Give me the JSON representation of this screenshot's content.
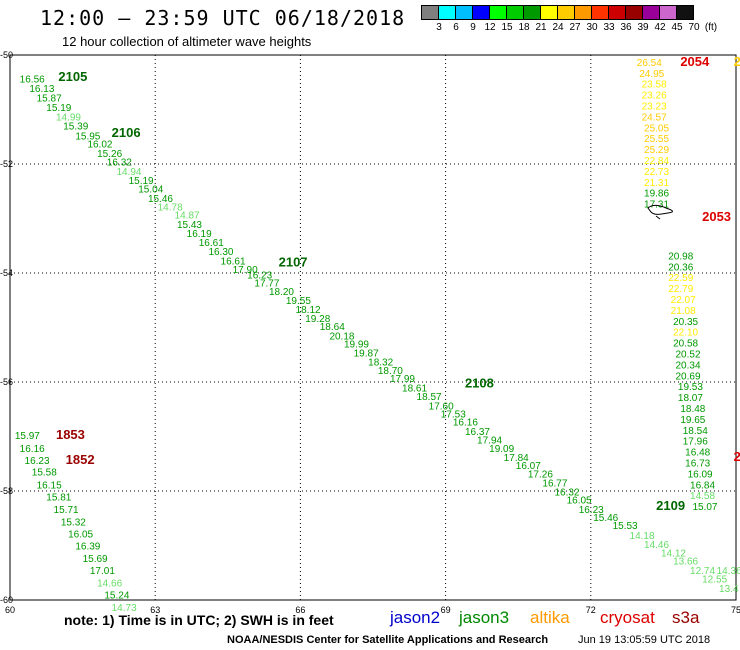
{
  "header": {
    "title": "12:00 — 23:59 UTC 06/18/2018",
    "subtitle": "12 hour collection of altimeter wave heights"
  },
  "color_scale": {
    "labels": [
      "3",
      "6",
      "9",
      "12",
      "15",
      "18",
      "21",
      "24",
      "27",
      "30",
      "33",
      "36",
      "39",
      "42",
      "45",
      "70",
      "(ft)"
    ],
    "colors": [
      "#7f7f7f",
      "#00ffff",
      "#00bfff",
      "#0000ff",
      "#00ff00",
      "#00cc00",
      "#009900",
      "#ffff00",
      "#ffcc00",
      "#ff9900",
      "#ff3300",
      "#cc0000",
      "#990000",
      "#990099",
      "#cc66cc",
      "#111111"
    ]
  },
  "axes": {
    "x_ticks": [
      "60",
      "63",
      "66",
      "69",
      "72",
      "75"
    ],
    "y_ticks": [
      "-50",
      "-52",
      "-54",
      "-56",
      "-58",
      "-60"
    ]
  },
  "footer": {
    "note": "note:  1) Time is in UTC;  2) SWH is in feet",
    "satellites": [
      {
        "name": "jason2",
        "color": "#0000cc"
      },
      {
        "name": "jason3",
        "color": "#008800"
      },
      {
        "name": "altika",
        "color": "#ff9900"
      },
      {
        "name": "cryosat",
        "color": "#dd0000"
      },
      {
        "name": "s3a",
        "color": "#990000"
      }
    ],
    "credit": "NOAA/NESDIS Center for Satellite Applications and Research",
    "timestamp": "Jun 19 13:05:59 UTC 2018"
  },
  "tracks": [
    {
      "satellite": "jason3",
      "labels": [
        {
          "text": "2105",
          "lon": 61.0,
          "lat": -50.48,
          "color": "#006600"
        },
        {
          "text": "2106",
          "lon": 62.1,
          "lat": -51.5,
          "color": "#006600"
        },
        {
          "text": "2107",
          "lon": 65.55,
          "lat": -53.88,
          "color": "#006600"
        },
        {
          "text": "2108",
          "lon": 69.4,
          "lat": -56.1,
          "color": "#006600"
        },
        {
          "text": "2109",
          "lon": 73.35,
          "lat": -58.35,
          "color": "#006600"
        }
      ],
      "values": [
        {
          "v": "16.56",
          "lon": 60.2,
          "lat": -50.5,
          "c": "#009900"
        },
        {
          "v": "16.13",
          "lon": 60.4,
          "lat": -50.68,
          "c": "#009900"
        },
        {
          "v": "15.87",
          "lon": 60.55,
          "lat": -50.85,
          "c": "#009900"
        },
        {
          "v": "15.19",
          "lon": 60.75,
          "lat": -51.03,
          "c": "#009900"
        },
        {
          "v": "14.99",
          "lon": 60.95,
          "lat": -51.2,
          "c": "#66dd66"
        },
        {
          "v": "15.39",
          "lon": 61.1,
          "lat": -51.37,
          "c": "#009900"
        },
        {
          "v": "15.95",
          "lon": 61.35,
          "lat": -51.55,
          "c": "#009900"
        },
        {
          "v": "16.02",
          "lon": 61.6,
          "lat": -51.7,
          "c": "#009900"
        },
        {
          "v": "15.26",
          "lon": 61.8,
          "lat": -51.87,
          "c": "#009900"
        },
        {
          "v": "16.32",
          "lon": 62.0,
          "lat": -52.03,
          "c": "#009900"
        },
        {
          "v": "14.94",
          "lon": 62.2,
          "lat": -52.2,
          "c": "#66dd66"
        },
        {
          "v": "15.19",
          "lon": 62.45,
          "lat": -52.37,
          "c": "#009900"
        },
        {
          "v": "15.04",
          "lon": 62.65,
          "lat": -52.52,
          "c": "#009900"
        },
        {
          "v": "15.46",
          "lon": 62.85,
          "lat": -52.7,
          "c": "#009900"
        },
        {
          "v": "14.78",
          "lon": 63.05,
          "lat": -52.85,
          "c": "#66dd66"
        },
        {
          "v": "14.87",
          "lon": 63.4,
          "lat": -53.0,
          "c": "#66dd66"
        },
        {
          "v": "15.43",
          "lon": 63.45,
          "lat": -53.17,
          "c": "#009900"
        },
        {
          "v": "16.19",
          "lon": 63.65,
          "lat": -53.34,
          "c": "#009900"
        },
        {
          "v": "16.61",
          "lon": 63.9,
          "lat": -53.5,
          "c": "#009900"
        },
        {
          "v": "16.30",
          "lon": 64.1,
          "lat": -53.67,
          "c": "#009900"
        },
        {
          "v": "16.61",
          "lon": 64.35,
          "lat": -53.84,
          "c": "#009900"
        },
        {
          "v": "17.90",
          "lon": 64.6,
          "lat": -54.0,
          "c": "#009900"
        },
        {
          "v": "16.23",
          "lon": 64.9,
          "lat": -54.1,
          "c": "#009900"
        },
        {
          "v": "17.77",
          "lon": 65.05,
          "lat": -54.25,
          "c": "#009900"
        },
        {
          "v": "18.20",
          "lon": 65.35,
          "lat": -54.4,
          "c": "#009900"
        },
        {
          "v": "19.55",
          "lon": 65.7,
          "lat": -54.57,
          "c": "#009900"
        },
        {
          "v": "18.12",
          "lon": 65.9,
          "lat": -54.73,
          "c": "#009900"
        },
        {
          "v": "19.28",
          "lon": 66.1,
          "lat": -54.9,
          "c": "#009900"
        },
        {
          "v": "18.64",
          "lon": 66.4,
          "lat": -55.05,
          "c": "#009900"
        },
        {
          "v": "20.18",
          "lon": 66.6,
          "lat": -55.22,
          "c": "#009900"
        },
        {
          "v": "19.99",
          "lon": 66.9,
          "lat": -55.37,
          "c": "#009900"
        },
        {
          "v": "19.87",
          "lon": 67.1,
          "lat": -55.53,
          "c": "#009900"
        },
        {
          "v": "18.32",
          "lon": 67.4,
          "lat": -55.7,
          "c": "#009900"
        },
        {
          "v": "18.70",
          "lon": 67.6,
          "lat": -55.85,
          "c": "#009900"
        },
        {
          "v": "17.99",
          "lon": 67.85,
          "lat": -56.0,
          "c": "#009900"
        },
        {
          "v": "18.61",
          "lon": 68.1,
          "lat": -56.17,
          "c": "#009900"
        },
        {
          "v": "18.57",
          "lon": 68.4,
          "lat": -56.33,
          "c": "#009900"
        },
        {
          "v": "17.60",
          "lon": 68.65,
          "lat": -56.5,
          "c": "#009900"
        },
        {
          "v": "17.53",
          "lon": 68.9,
          "lat": -56.65,
          "c": "#009900"
        },
        {
          "v": "16.16",
          "lon": 69.15,
          "lat": -56.8,
          "c": "#009900"
        },
        {
          "v": "16.37",
          "lon": 69.4,
          "lat": -56.97,
          "c": "#009900"
        },
        {
          "v": "17.94",
          "lon": 69.65,
          "lat": -57.13,
          "c": "#009900"
        },
        {
          "v": "19.09",
          "lon": 69.9,
          "lat": -57.28,
          "c": "#009900"
        },
        {
          "v": "17.84",
          "lon": 70.2,
          "lat": -57.45,
          "c": "#009900"
        },
        {
          "v": "16.07",
          "lon": 70.45,
          "lat": -57.6,
          "c": "#009900"
        },
        {
          "v": "17.26",
          "lon": 70.7,
          "lat": -57.75,
          "c": "#009900"
        },
        {
          "v": "16.77",
          "lon": 71.0,
          "lat": -57.92,
          "c": "#009900"
        },
        {
          "v": "16.32",
          "lon": 71.25,
          "lat": -58.08,
          "c": "#009900"
        },
        {
          "v": "16.05",
          "lon": 71.5,
          "lat": -58.23,
          "c": "#009900"
        },
        {
          "v": "16.23",
          "lon": 71.75,
          "lat": -58.4,
          "c": "#009900"
        },
        {
          "v": "15.46",
          "lon": 72.05,
          "lat": -58.55,
          "c": "#009900"
        },
        {
          "v": "15.53",
          "lon": 72.45,
          "lat": -58.7,
          "c": "#009900"
        },
        {
          "v": "14.18",
          "lon": 72.8,
          "lat": -58.88,
          "c": "#66dd66"
        },
        {
          "v": "14.46",
          "lon": 73.1,
          "lat": -59.05,
          "c": "#66dd66"
        },
        {
          "v": "14.12",
          "lon": 73.45,
          "lat": -59.2,
          "c": "#66dd66"
        },
        {
          "v": "13.66",
          "lon": 73.7,
          "lat": -59.35,
          "c": "#66dd66"
        },
        {
          "v": "12.74",
          "lon": 74.05,
          "lat": -59.52,
          "c": "#66dd66"
        },
        {
          "v": "14.36",
          "lon": 74.6,
          "lat": -59.52,
          "c": "#66dd66"
        },
        {
          "v": "12.55",
          "lon": 74.3,
          "lat": -59.68,
          "c": "#66dd66"
        },
        {
          "v": "13.4",
          "lon": 74.65,
          "lat": -59.85,
          "c": "#66dd66"
        }
      ]
    },
    {
      "satellite": "cryosat",
      "labels": [
        {
          "text": "2054",
          "lon": 73.85,
          "lat": -50.2,
          "color": "#dd0000"
        },
        {
          "text": "2053",
          "lon": 74.3,
          "lat": -53.05,
          "color": "#dd0000"
        }
      ],
      "values": [
        {
          "v": "26.54",
          "lon": 72.95,
          "lat": -50.2,
          "c": "#ffcc00"
        },
        {
          "v": "24.95",
          "lon": 73.0,
          "lat": -50.4,
          "c": "#ffcc00"
        },
        {
          "v": "23.58",
          "lon": 73.05,
          "lat": -50.6,
          "c": "#ffee00"
        },
        {
          "v": "23.26",
          "lon": 73.05,
          "lat": -50.8,
          "c": "#ffee00"
        },
        {
          "v": "23.23",
          "lon": 73.05,
          "lat": -51.0,
          "c": "#ffee00"
        },
        {
          "v": "24.57",
          "lon": 73.05,
          "lat": -51.2,
          "c": "#ffcc00"
        },
        {
          "v": "25.05",
          "lon": 73.1,
          "lat": -51.4,
          "c": "#ffcc00"
        },
        {
          "v": "25.55",
          "lon": 73.1,
          "lat": -51.6,
          "c": "#ffcc00"
        },
        {
          "v": "25.29",
          "lon": 73.1,
          "lat": -51.8,
          "c": "#ffcc00"
        },
        {
          "v": "22.84",
          "lon": 73.1,
          "lat": -52.0,
          "c": "#ffee00"
        },
        {
          "v": "22.73",
          "lon": 73.1,
          "lat": -52.2,
          "c": "#ffee00"
        },
        {
          "v": "21.31",
          "lon": 73.1,
          "lat": -52.4,
          "c": "#ffee00"
        },
        {
          "v": "19.86",
          "lon": 73.1,
          "lat": -52.6,
          "c": "#009900"
        },
        {
          "v": "17.31",
          "lon": 73.1,
          "lat": -52.8,
          "c": "#009900"
        },
        {
          "v": "20.98",
          "lon": 73.6,
          "lat": -53.75,
          "c": "#009900"
        },
        {
          "v": "20.36",
          "lon": 73.6,
          "lat": -53.95,
          "c": "#009900"
        },
        {
          "v": "22.59",
          "lon": 73.6,
          "lat": -54.15,
          "c": "#ffee00"
        },
        {
          "v": "22.79",
          "lon": 73.6,
          "lat": -54.35,
          "c": "#ffee00"
        },
        {
          "v": "22.07",
          "lon": 73.65,
          "lat": -54.55,
          "c": "#ffee00"
        },
        {
          "v": "21.08",
          "lon": 73.65,
          "lat": -54.75,
          "c": "#ffee00"
        },
        {
          "v": "20.35",
          "lon": 73.7,
          "lat": -54.95,
          "c": "#009900"
        },
        {
          "v": "22.10",
          "lon": 73.7,
          "lat": -55.15,
          "c": "#ffee00"
        },
        {
          "v": "20.58",
          "lon": 73.7,
          "lat": -55.35,
          "c": "#009900"
        },
        {
          "v": "20.52",
          "lon": 73.75,
          "lat": -55.55,
          "c": "#009900"
        },
        {
          "v": "20.34",
          "lon": 73.75,
          "lat": -55.75,
          "c": "#009900"
        },
        {
          "v": "20.69",
          "lon": 73.75,
          "lat": -55.95,
          "c": "#009900"
        },
        {
          "v": "19.53",
          "lon": 73.8,
          "lat": -56.15,
          "c": "#009900"
        },
        {
          "v": "18.07",
          "lon": 73.8,
          "lat": -56.35,
          "c": "#009900"
        },
        {
          "v": "18.48",
          "lon": 73.85,
          "lat": -56.55,
          "c": "#009900"
        },
        {
          "v": "19.65",
          "lon": 73.85,
          "lat": -56.75,
          "c": "#009900"
        },
        {
          "v": "18.54",
          "lon": 73.9,
          "lat": -56.95,
          "c": "#009900"
        },
        {
          "v": "17.96",
          "lon": 73.9,
          "lat": -57.15,
          "c": "#009900"
        },
        {
          "v": "16.48",
          "lon": 73.95,
          "lat": -57.35,
          "c": "#009900"
        },
        {
          "v": "16.73",
          "lon": 73.95,
          "lat": -57.55,
          "c": "#009900"
        },
        {
          "v": "16.09",
          "lon": 74.0,
          "lat": -57.75,
          "c": "#009900"
        },
        {
          "v": "16.84",
          "lon": 74.05,
          "lat": -57.95,
          "c": "#009900"
        },
        {
          "v": "14.58",
          "lon": 74.05,
          "lat": -58.15,
          "c": "#66dd66"
        },
        {
          "v": "15.07",
          "lon": 74.1,
          "lat": -58.35,
          "c": "#009900"
        }
      ]
    },
    {
      "satellite": "s3a",
      "labels": [
        {
          "text": "1853",
          "lon": 60.95,
          "lat": -57.05,
          "color": "#990000"
        },
        {
          "text": "1852",
          "lon": 61.15,
          "lat": -57.5,
          "color": "#990000"
        }
      ],
      "values": [
        {
          "v": "15.97",
          "lon": 60.1,
          "lat": -57.05,
          "c": "#009900"
        },
        {
          "v": "16.16",
          "lon": 60.2,
          "lat": -57.28,
          "c": "#009900"
        },
        {
          "v": "16.23",
          "lon": 60.3,
          "lat": -57.5,
          "c": "#009900"
        },
        {
          "v": "15.58",
          "lon": 60.45,
          "lat": -57.72,
          "c": "#009900"
        },
        {
          "v": "16.15",
          "lon": 60.55,
          "lat": -57.95,
          "c": "#009900"
        },
        {
          "v": "15.81",
          "lon": 60.75,
          "lat": -58.17,
          "c": "#009900"
        },
        {
          "v": "15.71",
          "lon": 60.9,
          "lat": -58.4,
          "c": "#009900"
        },
        {
          "v": "15.32",
          "lon": 61.05,
          "lat": -58.63,
          "c": "#009900"
        },
        {
          "v": "16.05",
          "lon": 61.2,
          "lat": -58.85,
          "c": "#009900"
        },
        {
          "v": "16.39",
          "lon": 61.35,
          "lat": -59.07,
          "c": "#009900"
        },
        {
          "v": "15.69",
          "lon": 61.5,
          "lat": -59.3,
          "c": "#009900"
        },
        {
          "v": "17.01",
          "lon": 61.65,
          "lat": -59.52,
          "c": "#009900"
        },
        {
          "v": "14.66",
          "lon": 61.8,
          "lat": -59.75,
          "c": "#66dd66"
        },
        {
          "v": "15.24",
          "lon": 61.95,
          "lat": -59.97,
          "c": "#009900"
        },
        {
          "v": "14.73",
          "lon": 62.1,
          "lat": -60.2,
          "c": "#66dd66"
        }
      ]
    }
  ],
  "edge_marks": [
    {
      "text": "2",
      "lon": 74.95,
      "lat": -50.2,
      "color": "#ffcc00"
    },
    {
      "text": "2",
      "lon": 74.95,
      "lat": -57.45,
      "color": "#dd0000"
    }
  ]
}
